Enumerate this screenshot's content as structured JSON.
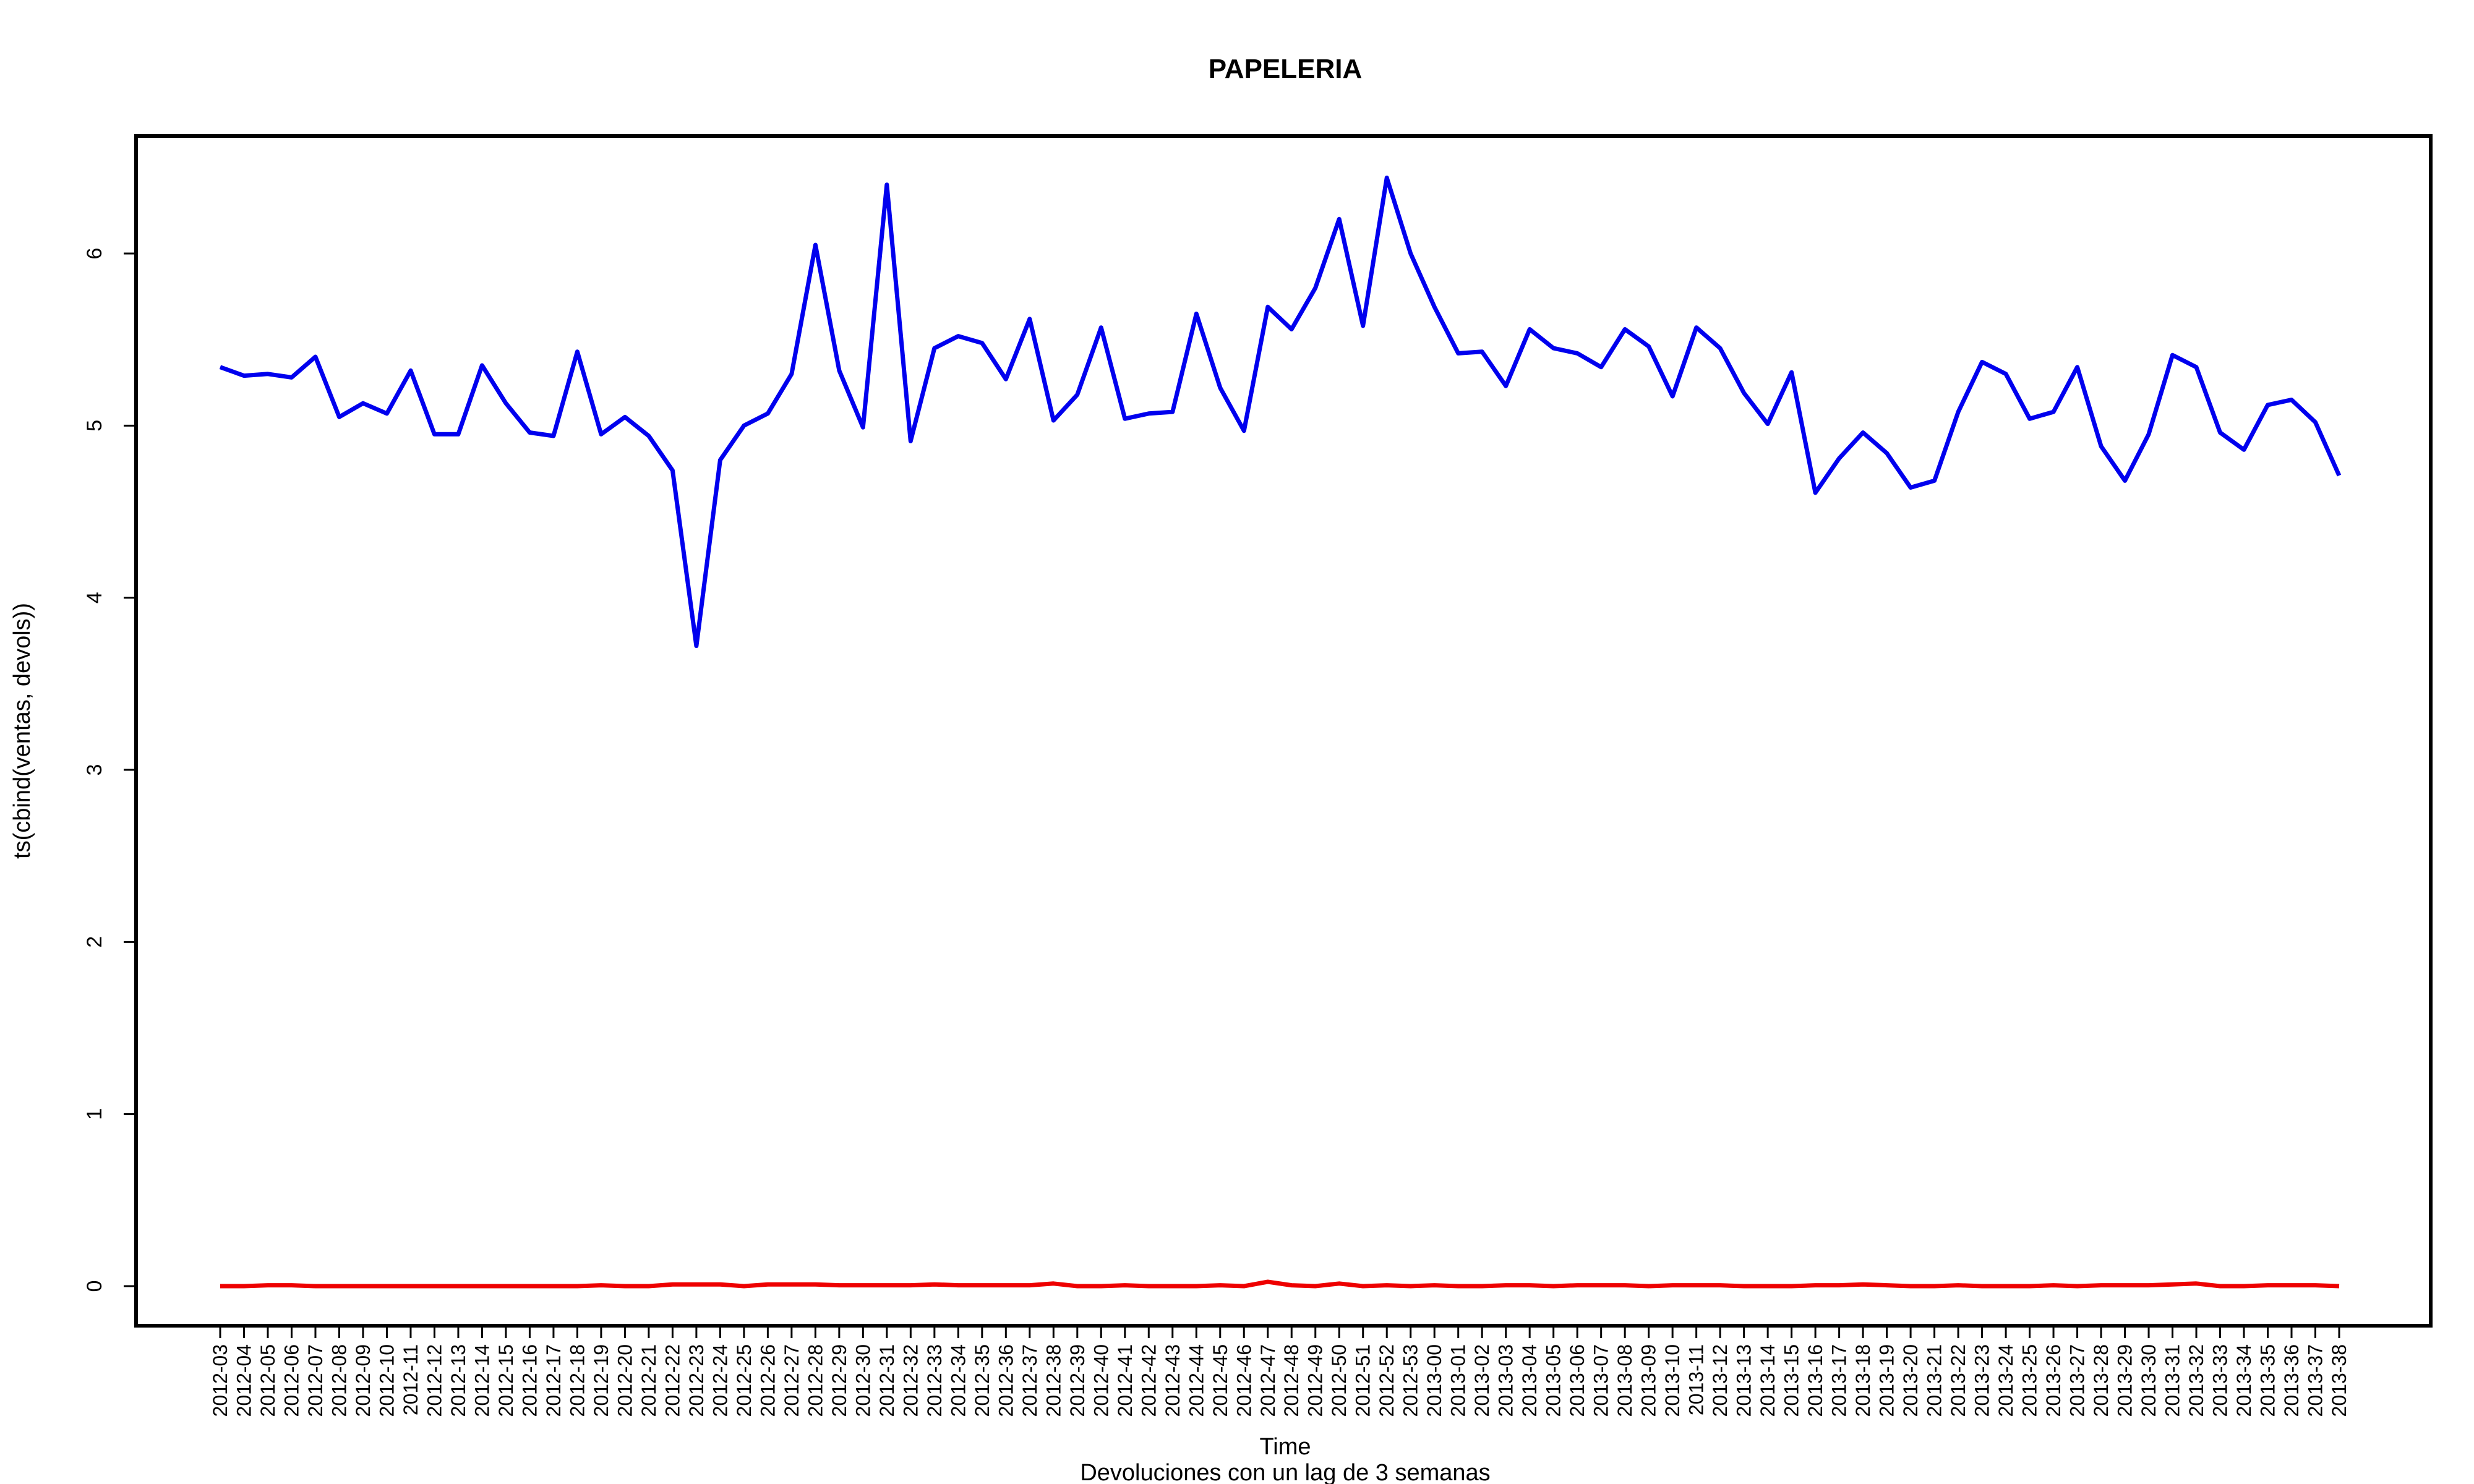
{
  "chart_data": {
    "type": "line",
    "title": "PAPELERIA",
    "xlabel": "Time",
    "ylabel": "ts(cbind(ventas, devols))",
    "subtitle": "Devoluciones con un lag de 3 semanas",
    "ylim": [
      -0.2,
      6.7
    ],
    "yticks": [
      0,
      1,
      2,
      3,
      4,
      5,
      6
    ],
    "grid": false,
    "categories": [
      "2012-03",
      "2012-04",
      "2012-05",
      "2012-06",
      "2012-07",
      "2012-08",
      "2012-09",
      "2012-10",
      "2012-11",
      "2012-12",
      "2012-13",
      "2012-14",
      "2012-15",
      "2012-16",
      "2012-17",
      "2012-18",
      "2012-19",
      "2012-20",
      "2012-21",
      "2012-22",
      "2012-23",
      "2012-24",
      "2012-25",
      "2012-26",
      "2012-27",
      "2012-28",
      "2012-29",
      "2012-30",
      "2012-31",
      "2012-32",
      "2012-33",
      "2012-34",
      "2012-35",
      "2012-36",
      "2012-37",
      "2012-38",
      "2012-39",
      "2012-40",
      "2012-41",
      "2012-42",
      "2012-43",
      "2012-44",
      "2012-45",
      "2012-46",
      "2012-47",
      "2012-48",
      "2012-49",
      "2012-50",
      "2012-51",
      "2012-52",
      "2012-53",
      "2013-00",
      "2013-01",
      "2013-02",
      "2013-03",
      "2013-04",
      "2013-05",
      "2013-06",
      "2013-07",
      "2013-08",
      "2013-09",
      "2013-10",
      "2013-11",
      "2013-12",
      "2013-13",
      "2013-14",
      "2013-15",
      "2013-16",
      "2013-17",
      "2013-18",
      "2013-19",
      "2013-20",
      "2013-21",
      "2013-22",
      "2013-23",
      "2013-24",
      "2013-25",
      "2013-26",
      "2013-27",
      "2013-28",
      "2013-29",
      "2013-30",
      "2013-31",
      "2013-32",
      "2013-33",
      "2013-34",
      "2013-35",
      "2013-36",
      "2013-37",
      "2013-38"
    ],
    "series": [
      {
        "color": "#0000ee",
        "values": [
          5.34,
          5.29,
          5.3,
          5.28,
          5.4,
          5.05,
          5.13,
          5.07,
          5.32,
          4.95,
          4.95,
          5.35,
          5.13,
          4.96,
          4.94,
          5.43,
          4.95,
          5.05,
          4.94,
          4.74,
          3.72,
          4.8,
          5.0,
          5.07,
          5.3,
          6.05,
          5.32,
          4.99,
          6.4,
          4.91,
          5.45,
          5.52,
          5.48,
          5.27,
          5.62,
          5.03,
          5.18,
          5.57,
          5.04,
          5.07,
          5.08,
          5.65,
          5.22,
          4.97,
          5.69,
          5.56,
          5.8,
          6.2,
          5.58,
          6.44,
          6.0,
          5.69,
          5.42,
          5.43,
          5.23,
          5.56,
          5.45,
          5.42,
          5.34,
          5.56,
          5.46,
          5.17,
          5.57,
          5.45,
          5.19,
          5.01,
          5.31,
          4.61,
          4.81,
          4.96,
          4.84,
          4.64,
          4.68,
          5.08,
          5.37,
          5.3,
          5.04,
          5.08,
          5.34,
          4.88,
          4.68,
          4.95,
          5.41,
          5.34,
          4.96,
          4.86,
          5.12,
          5.15,
          5.02,
          4.71
        ]
      },
      {
        "color": "#ee0000",
        "values": [
          0.0,
          0.0,
          0.005,
          0.005,
          0.0,
          0.0,
          0.0,
          0.0,
          0.0,
          0.0,
          0.0,
          0.0,
          0.0,
          0.0,
          0.0,
          0.0,
          0.005,
          0.0,
          0.0,
          0.01,
          0.01,
          0.01,
          0.0,
          0.01,
          0.01,
          0.01,
          0.005,
          0.005,
          0.005,
          0.005,
          0.01,
          0.005,
          0.005,
          0.005,
          0.005,
          0.015,
          0.0,
          0.0,
          0.005,
          0.0,
          0.0,
          0.0,
          0.005,
          0.0,
          0.025,
          0.005,
          0.0,
          0.015,
          0.0,
          0.005,
          0.0,
          0.005,
          0.0,
          0.0,
          0.005,
          0.005,
          0.0,
          0.005,
          0.005,
          0.005,
          0.0,
          0.005,
          0.005,
          0.005,
          0.0,
          0.0,
          0.0,
          0.005,
          0.005,
          0.01,
          0.005,
          0.0,
          0.0,
          0.005,
          0.0,
          0.0,
          0.0,
          0.005,
          0.0,
          0.005,
          0.005,
          0.005,
          0.01,
          0.015,
          0.0,
          0.0,
          0.005,
          0.005,
          0.005,
          0.0
        ]
      }
    ]
  }
}
